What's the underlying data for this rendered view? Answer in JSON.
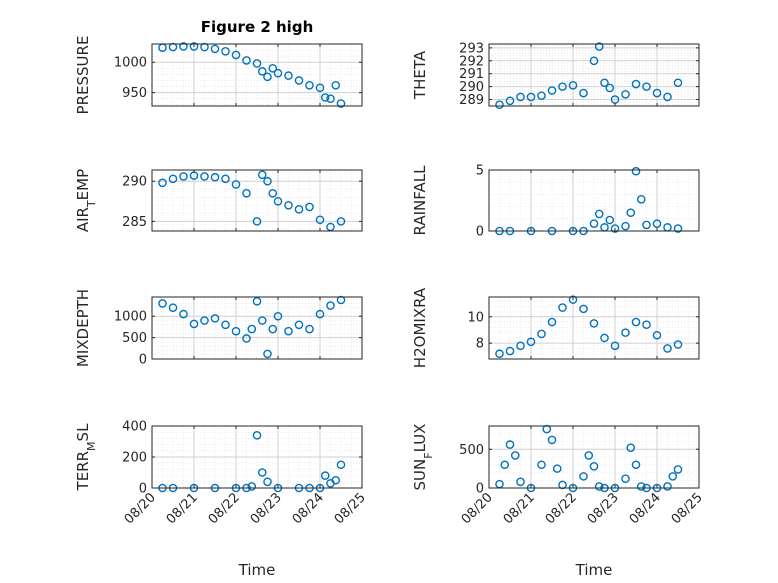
{
  "chart_data": [
    {
      "type": "scatter",
      "title": "Figure 2 high",
      "ylabel": "PRESSURE",
      "xlabel": "",
      "xlim": [
        "08/20",
        "08/25"
      ],
      "ylim": [
        928,
        1030
      ],
      "yticks": [
        950,
        1000
      ],
      "ytick_labels": [
        "950",
        "1000"
      ],
      "grid": "major+minor",
      "x": [
        "08/20 06:00",
        "08/20 12:00",
        "08/20 18:00",
        "08/21 00:00",
        "08/21 06:00",
        "08/21 12:00",
        "08/21 18:00",
        "08/22 00:00",
        "08/22 06:00",
        "08/22 12:00",
        "08/22 15:00",
        "08/22 18:00",
        "08/22 21:00",
        "08/23 00:00",
        "08/23 06:00",
        "08/23 12:00",
        "08/23 18:00",
        "08/24 00:00",
        "08/24 03:00",
        "08/24 06:00",
        "08/24 09:00",
        "08/24 12:00"
      ],
      "values": [
        1024,
        1025,
        1026,
        1026,
        1025,
        1022,
        1018,
        1012,
        1003,
        998,
        985,
        976,
        990,
        982,
        978,
        970,
        962,
        958,
        942,
        940,
        962,
        932
      ]
    },
    {
      "type": "scatter",
      "title": "",
      "ylabel": "THETA",
      "xlabel": "",
      "xlim": [
        "08/20",
        "08/25"
      ],
      "ylim": [
        288.5,
        293.3
      ],
      "yticks": [
        289,
        290,
        291,
        292,
        293
      ],
      "ytick_labels": [
        "289",
        "290",
        "291",
        "292",
        "293"
      ],
      "grid": "major+minor",
      "x": [
        "08/20 06:00",
        "08/20 12:00",
        "08/20 18:00",
        "08/21 00:00",
        "08/21 06:00",
        "08/21 12:00",
        "08/21 18:00",
        "08/22 00:00",
        "08/22 06:00",
        "08/22 12:00",
        "08/22 15:00",
        "08/22 18:00",
        "08/22 21:00",
        "08/23 00:00",
        "08/23 06:00",
        "08/23 12:00",
        "08/23 18:00",
        "08/24 00:00",
        "08/24 06:00",
        "08/24 12:00"
      ],
      "values": [
        288.6,
        288.9,
        289.2,
        289.2,
        289.3,
        289.7,
        290.0,
        290.1,
        289.5,
        292.0,
        293.1,
        290.3,
        289.9,
        289.0,
        289.4,
        290.2,
        290.0,
        289.5,
        289.2,
        290.3
      ]
    },
    {
      "type": "scatter",
      "title": "",
      "ylabel": "AIR_TEMP",
      "xlabel": "",
      "xlim": [
        "08/20",
        "08/25"
      ],
      "ylim": [
        283.8,
        291.4
      ],
      "yticks": [
        285,
        290
      ],
      "ytick_labels": [
        "285",
        "290"
      ],
      "grid": "major+minor",
      "x": [
        "08/20 06:00",
        "08/20 12:00",
        "08/20 18:00",
        "08/21 00:00",
        "08/21 06:00",
        "08/21 12:00",
        "08/21 18:00",
        "08/22 00:00",
        "08/22 06:00",
        "08/22 12:00",
        "08/22 15:00",
        "08/22 18:00",
        "08/22 21:00",
        "08/23 00:00",
        "08/23 06:00",
        "08/23 12:00",
        "08/23 18:00",
        "08/24 00:00",
        "08/24 06:00",
        "08/24 12:00"
      ],
      "values": [
        289.8,
        290.3,
        290.6,
        290.7,
        290.6,
        290.5,
        290.3,
        289.6,
        288.5,
        285.0,
        290.8,
        290.0,
        288.5,
        287.5,
        287.0,
        286.5,
        286.8,
        285.2,
        284.3,
        285.0
      ]
    },
    {
      "type": "scatter",
      "title": "",
      "ylabel": "RAINFALL",
      "xlabel": "",
      "xlim": [
        "08/20",
        "08/25"
      ],
      "ylim": [
        0,
        5
      ],
      "yticks": [
        0,
        5
      ],
      "ytick_labels": [
        "0",
        "5"
      ],
      "grid": "major+minor",
      "x": [
        "08/20 06:00",
        "08/20 12:00",
        "08/21 00:00",
        "08/21 12:00",
        "08/22 00:00",
        "08/22 06:00",
        "08/22 12:00",
        "08/22 15:00",
        "08/22 18:00",
        "08/22 21:00",
        "08/23 00:00",
        "08/23 06:00",
        "08/23 09:00",
        "08/23 12:00",
        "08/23 15:00",
        "08/23 18:00",
        "08/24 00:00",
        "08/24 06:00",
        "08/24 12:00"
      ],
      "values": [
        0,
        0,
        0,
        0,
        0,
        0,
        0.6,
        1.4,
        0.3,
        0.9,
        0.2,
        0.4,
        1.5,
        4.9,
        2.6,
        0.5,
        0.6,
        0.3,
        0.2
      ]
    },
    {
      "type": "scatter",
      "title": "",
      "ylabel": "MIXDEPTH",
      "xlabel": "",
      "xlim": [
        "08/20",
        "08/25"
      ],
      "ylim": [
        0,
        1450
      ],
      "yticks": [
        0,
        500,
        1000
      ],
      "ytick_labels": [
        "0",
        "500",
        "1000"
      ],
      "grid": "major+minor",
      "x": [
        "08/20 06:00",
        "08/20 12:00",
        "08/20 18:00",
        "08/21 00:00",
        "08/21 06:00",
        "08/21 12:00",
        "08/21 18:00",
        "08/22 00:00",
        "08/22 06:00",
        "08/22 09:00",
        "08/22 12:00",
        "08/22 15:00",
        "08/22 18:00",
        "08/22 21:00",
        "08/23 00:00",
        "08/23 06:00",
        "08/23 12:00",
        "08/23 18:00",
        "08/24 00:00",
        "08/24 06:00",
        "08/24 12:00"
      ],
      "values": [
        1300,
        1200,
        1050,
        820,
        900,
        950,
        800,
        650,
        480,
        700,
        1350,
        900,
        120,
        700,
        1000,
        650,
        800,
        700,
        1050,
        1250,
        1380
      ]
    },
    {
      "type": "scatter",
      "title": "",
      "ylabel": "H2OMIXRA",
      "xlabel": "",
      "xlim": [
        "08/20",
        "08/25"
      ],
      "ylim": [
        6.8,
        11.5
      ],
      "yticks": [
        8,
        10
      ],
      "ytick_labels": [
        "8",
        "10"
      ],
      "grid": "major+minor",
      "x": [
        "08/20 06:00",
        "08/20 12:00",
        "08/20 18:00",
        "08/21 00:00",
        "08/21 06:00",
        "08/21 12:00",
        "08/21 18:00",
        "08/22 00:00",
        "08/22 06:00",
        "08/22 12:00",
        "08/22 18:00",
        "08/23 00:00",
        "08/23 06:00",
        "08/23 12:00",
        "08/23 18:00",
        "08/24 00:00",
        "08/24 06:00",
        "08/24 12:00"
      ],
      "values": [
        7.2,
        7.4,
        7.8,
        8.1,
        8.7,
        9.6,
        10.7,
        11.3,
        10.6,
        9.5,
        8.4,
        7.8,
        8.8,
        9.6,
        9.4,
        8.6,
        7.6,
        7.9
      ]
    },
    {
      "type": "scatter",
      "title": "",
      "ylabel": "TERR_MSL",
      "xlabel": "Time",
      "xlim": [
        "08/20",
        "08/25"
      ],
      "ylim": [
        0,
        400
      ],
      "yticks": [
        0,
        200,
        400
      ],
      "ytick_labels": [
        "0",
        "200",
        "400"
      ],
      "xtick_labels": [
        "08/20",
        "08/21",
        "08/22",
        "08/23",
        "08/24",
        "08/25"
      ],
      "grid": "major+minor",
      "x": [
        "08/20 06:00",
        "08/20 12:00",
        "08/21 00:00",
        "08/21 12:00",
        "08/22 00:00",
        "08/22 06:00",
        "08/22 09:00",
        "08/22 12:00",
        "08/22 15:00",
        "08/22 18:00",
        "08/23 00:00",
        "08/23 12:00",
        "08/23 18:00",
        "08/24 00:00",
        "08/24 03:00",
        "08/24 06:00",
        "08/24 09:00",
        "08/24 12:00"
      ],
      "values": [
        0,
        0,
        0,
        0,
        0,
        0,
        10,
        340,
        100,
        40,
        0,
        0,
        0,
        0,
        80,
        30,
        50,
        150
      ]
    },
    {
      "type": "scatter",
      "title": "",
      "ylabel": "SUN_FLUX",
      "xlabel": "Time",
      "xlim": [
        "08/20",
        "08/25"
      ],
      "ylim": [
        0,
        800
      ],
      "yticks": [
        0,
        500
      ],
      "ytick_labels": [
        "0",
        "500"
      ],
      "xtick_labels": [
        "08/20",
        "08/21",
        "08/22",
        "08/23",
        "08/24",
        "08/25"
      ],
      "grid": "major+minor",
      "x": [
        "08/20 06:00",
        "08/20 09:00",
        "08/20 12:00",
        "08/20 15:00",
        "08/20 18:00",
        "08/21 00:00",
        "08/21 06:00",
        "08/21 09:00",
        "08/21 12:00",
        "08/21 15:00",
        "08/21 18:00",
        "08/22 00:00",
        "08/22 06:00",
        "08/22 09:00",
        "08/22 12:00",
        "08/22 15:00",
        "08/22 18:00",
        "08/23 00:00",
        "08/23 06:00",
        "08/23 09:00",
        "08/23 12:00",
        "08/23 15:00",
        "08/23 18:00",
        "08/24 00:00",
        "08/24 06:00",
        "08/24 09:00",
        "08/24 12:00"
      ],
      "values": [
        50,
        300,
        560,
        420,
        80,
        0,
        300,
        760,
        620,
        250,
        40,
        0,
        150,
        420,
        280,
        20,
        0,
        0,
        120,
        520,
        300,
        20,
        0,
        0,
        20,
        150,
        240
      ]
    }
  ],
  "colors": {
    "marker": "#0072BD",
    "axis": "#262626",
    "grid": "#dcdcdc"
  }
}
